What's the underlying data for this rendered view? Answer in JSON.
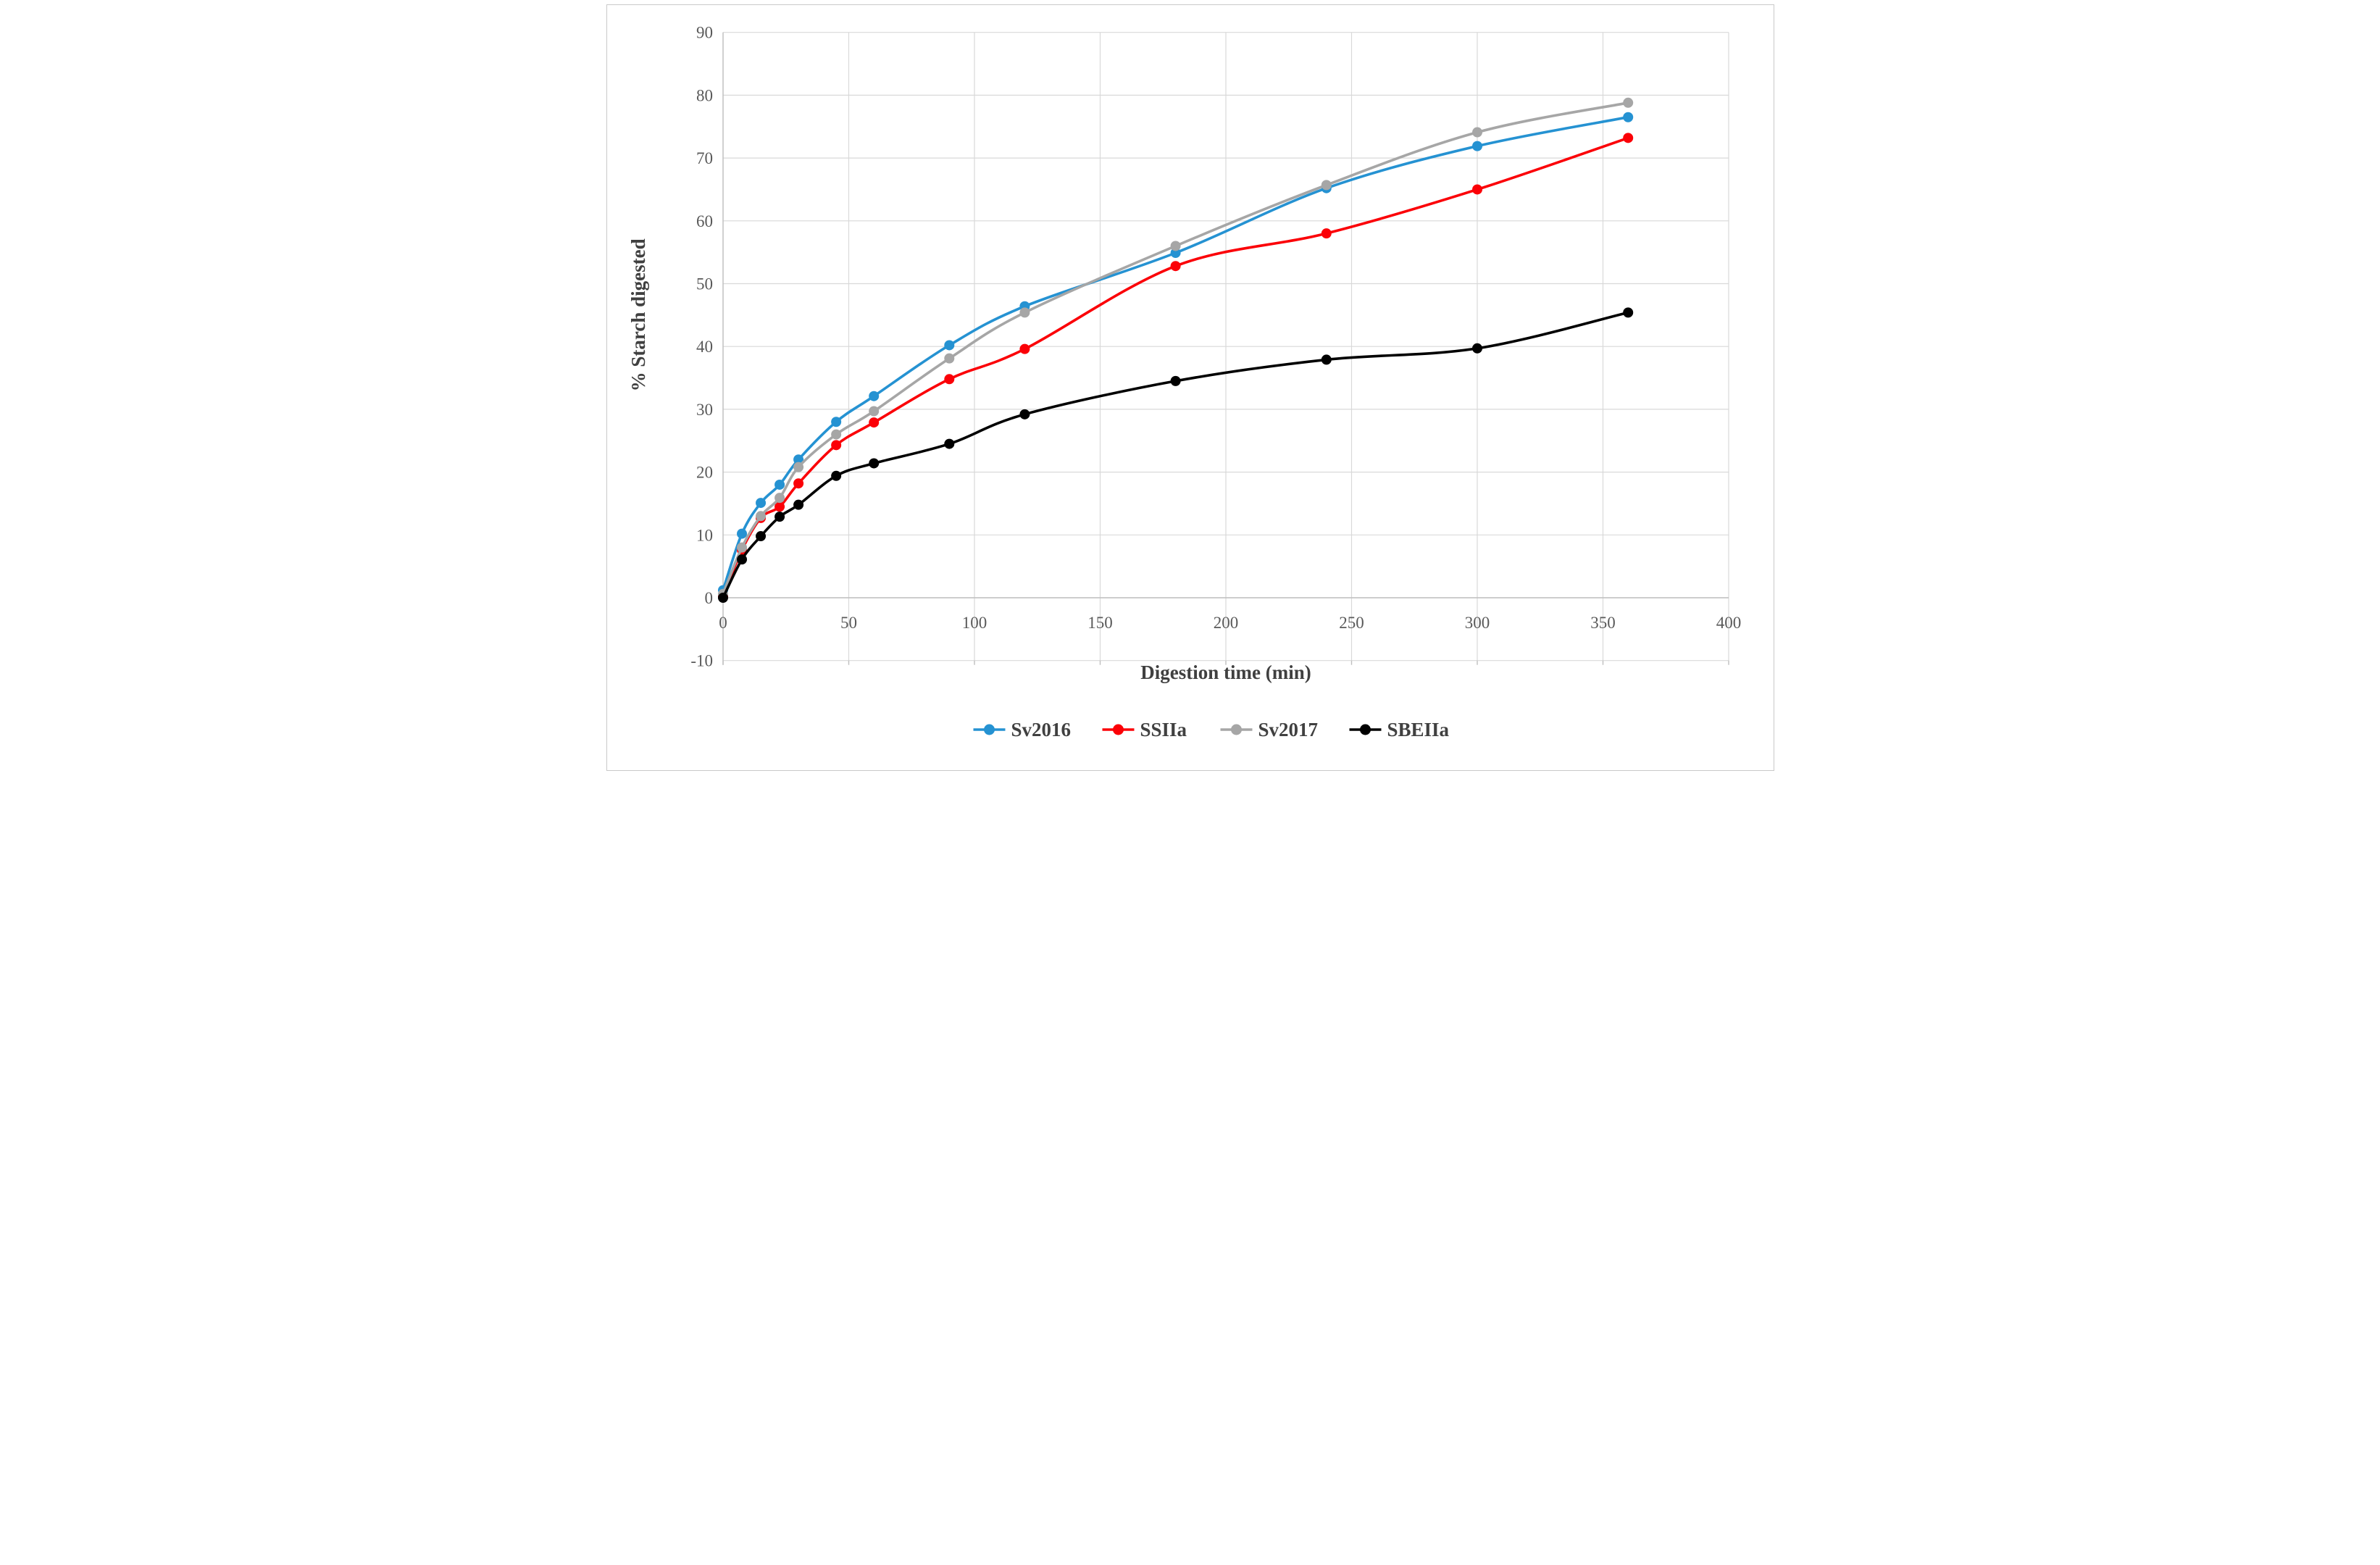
{
  "figure": {
    "type_label": "line-chart",
    "background": "#ffffff",
    "frame_color": "#c9c9c9"
  },
  "chart_data": {
    "type": "line",
    "title": "",
    "xlabel": "Digestion time (min)",
    "ylabel": "% Starch digested",
    "xlim": [
      0,
      400
    ],
    "ylim": [
      -10,
      90
    ],
    "x_ticks": [
      0,
      50,
      100,
      150,
      200,
      250,
      300,
      350,
      400
    ],
    "y_ticks": [
      -10,
      0,
      10,
      20,
      30,
      40,
      50,
      60,
      70,
      80,
      90
    ],
    "grid": true,
    "legend_position": "bottom",
    "marker": "circle",
    "smooth_lines": true,
    "x": [
      0,
      7.5,
      15,
      22.5,
      30,
      45,
      60,
      90,
      120,
      180,
      240,
      300,
      360
    ],
    "series": [
      {
        "name": "Sv2016",
        "color": "#2592d2",
        "values": [
          1.2,
          10.2,
          15.1,
          18.0,
          22.0,
          28.0,
          32.1,
          40.2,
          46.4,
          54.9,
          65.2,
          71.9,
          76.5
        ]
      },
      {
        "name": "SSIIa",
        "color": "#fb0007",
        "values": [
          0.2,
          7.6,
          12.7,
          14.5,
          18.2,
          24.3,
          27.9,
          34.8,
          39.6,
          52.8,
          58.0,
          65.0,
          73.2
        ]
      },
      {
        "name": "Sv2017",
        "color": "#a6a6a6",
        "values": [
          0.6,
          8.0,
          13.0,
          15.9,
          20.8,
          26.0,
          29.7,
          38.1,
          45.4,
          56.0,
          65.7,
          74.1,
          78.8
        ]
      },
      {
        "name": "SBEIIa",
        "color": "#000000",
        "values": [
          0.0,
          6.1,
          9.8,
          12.9,
          14.8,
          19.4,
          21.4,
          24.5,
          29.2,
          34.5,
          37.9,
          39.7,
          45.4
        ]
      }
    ],
    "colors": {
      "grid": "#d9d9d9",
      "axis": "#bfbfbf",
      "tick_text": "#595959",
      "title_text": "#404040"
    }
  }
}
